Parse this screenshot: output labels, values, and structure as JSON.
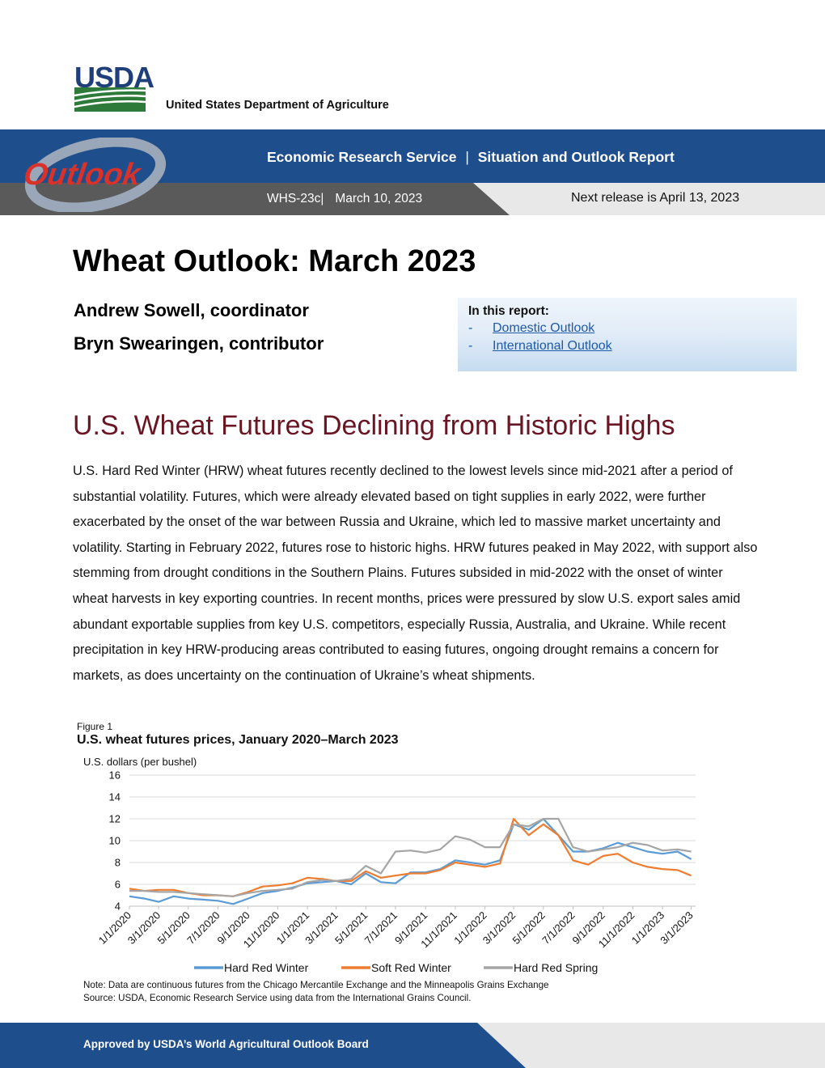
{
  "header": {
    "logo_text": "USDA",
    "department": "United States Department of Agriculture"
  },
  "banner": {
    "logo_text": "Outlook",
    "agency": "Economic Research Service",
    "separator": "|",
    "report_type": "Situation and Outlook Report",
    "report_id": "WHS-23c",
    "report_date": "March 10, 2023",
    "next_release": "Next release is April 13, 2023",
    "colors": {
      "blue": "#1f4e8c",
      "dark_gray": "#5a5a5a",
      "light_gray": "#e8e8e8"
    }
  },
  "report": {
    "title": "Wheat Outlook: March 2023",
    "authors": [
      "Andrew Sowell, coordinator",
      "Bryn Swearingen, contributor"
    ]
  },
  "toc": {
    "heading": "In this report:",
    "items": [
      {
        "dash": "-",
        "label": "Domestic Outlook"
      },
      {
        "dash": "-",
        "label": "International Outlook"
      }
    ]
  },
  "section": {
    "heading": "U.S. Wheat Futures Declining from Historic Highs",
    "heading_color": "#6a1524",
    "paragraph": "U.S. Hard Red Winter (HRW) wheat futures recently declined to the lowest levels since mid-2021 after a period of substantial volatility. Futures, which were already elevated based on tight supplies in early 2022, were further exacerbated by the onset of the war between Russia and Ukraine, which led to massive market uncertainty and volatility. Starting in February 2022, futures rose to historic highs. HRW futures peaked in May 2022, with support also stemming from drought conditions in the Southern Plains. Futures subsided in mid-2022 with the onset of winter wheat harvests in key exporting countries. In recent months, prices were pressured by slow U.S. export sales amid abundant exportable supplies from key U.S. competitors, especially Russia, Australia, and Ukraine. While recent precipitation in key HRW-producing areas contributed to easing futures, ongoing drought remains a concern for markets, as does uncertainty on the continuation of Ukraine’s wheat shipments."
  },
  "figure": {
    "label": "Figure 1",
    "title": "U.S. wheat futures prices, January 2020–March 2023",
    "note": "Note: Data are continuous futures from the Chicago Mercantile Exchange and the Minneapolis Grains Exchange",
    "source": "Source: USDA, Economic Research Service using data from the International Grains Council."
  },
  "chart_data": {
    "type": "line",
    "title": "U.S. wheat futures prices, January 2020–March 2023",
    "ylabel": "U.S. dollars (per bushel)",
    "xlabel": "",
    "ylim": [
      4,
      16
    ],
    "yticks": [
      4,
      6,
      8,
      10,
      12,
      14,
      16
    ],
    "x_tick_labels": [
      "1/1/2020",
      "3/1/2020",
      "5/1/2020",
      "7/1/2020",
      "9/1/2020",
      "11/1/2020",
      "1/1/2021",
      "3/1/2021",
      "5/1/2021",
      "7/1/2021",
      "9/1/2021",
      "11/1/2021",
      "1/1/2022",
      "3/1/2022",
      "5/1/2022",
      "7/1/2022",
      "9/1/2022",
      "11/1/2022",
      "1/1/2023",
      "3/1/2023"
    ],
    "x_domain": [
      "1/1/2020",
      "3/10/2023"
    ],
    "grid": true,
    "legend": "bottom",
    "x": [
      "1/1/2020",
      "2/1/2020",
      "3/1/2020",
      "4/1/2020",
      "5/1/2020",
      "6/1/2020",
      "7/1/2020",
      "8/1/2020",
      "9/1/2020",
      "10/1/2020",
      "11/1/2020",
      "12/1/2020",
      "1/1/2021",
      "2/1/2021",
      "3/1/2021",
      "4/1/2021",
      "5/1/2021",
      "6/1/2021",
      "7/1/2021",
      "8/1/2021",
      "9/1/2021",
      "10/1/2021",
      "11/1/2021",
      "12/1/2021",
      "1/1/2022",
      "2/1/2022",
      "3/1/2022",
      "4/1/2022",
      "5/1/2022",
      "6/1/2022",
      "7/1/2022",
      "8/1/2022",
      "9/1/2022",
      "10/1/2022",
      "11/1/2022",
      "12/1/2022",
      "1/1/2023",
      "2/1/2023",
      "3/1/2023"
    ],
    "series": [
      {
        "name": "Hard Red Winter",
        "color": "#5b9bd5",
        "values": [
          4.9,
          4.7,
          4.4,
          4.9,
          4.7,
          4.6,
          4.5,
          4.2,
          4.7,
          5.2,
          5.4,
          5.7,
          6.1,
          6.2,
          6.3,
          6.0,
          7.0,
          6.2,
          6.1,
          7.1,
          7.1,
          7.4,
          8.2,
          8.0,
          7.8,
          8.2,
          11.5,
          11.0,
          12.0,
          10.5,
          9.0,
          9.0,
          9.3,
          9.8,
          9.4,
          9.0,
          8.8,
          9.0,
          8.3
        ]
      },
      {
        "name": "Soft Red Winter",
        "color": "#ed7d31",
        "values": [
          5.6,
          5.4,
          5.5,
          5.5,
          5.2,
          5.0,
          5.0,
          4.9,
          5.3,
          5.8,
          5.9,
          6.1,
          6.6,
          6.5,
          6.3,
          6.3,
          7.2,
          6.6,
          6.8,
          7.0,
          7.0,
          7.3,
          8.0,
          7.8,
          7.6,
          7.9,
          12.0,
          10.5,
          11.5,
          10.5,
          8.2,
          7.8,
          8.6,
          8.8,
          8.0,
          7.6,
          7.4,
          7.3,
          6.8
        ]
      },
      {
        "name": "Hard Red Spring",
        "color": "#a5a5a5",
        "values": [
          5.4,
          5.4,
          5.3,
          5.3,
          5.2,
          5.1,
          5.0,
          4.9,
          5.2,
          5.4,
          5.5,
          5.6,
          6.2,
          6.4,
          6.3,
          6.5,
          7.7,
          7.0,
          9.0,
          9.1,
          8.9,
          9.2,
          10.4,
          10.1,
          9.4,
          9.4,
          11.5,
          11.3,
          12.0,
          12.0,
          9.4,
          9.0,
          9.2,
          9.4,
          9.8,
          9.6,
          9.1,
          9.2,
          9.0
        ]
      }
    ]
  },
  "footer": {
    "text": "Approved by USDA’s World Agricultural Outlook Board"
  }
}
